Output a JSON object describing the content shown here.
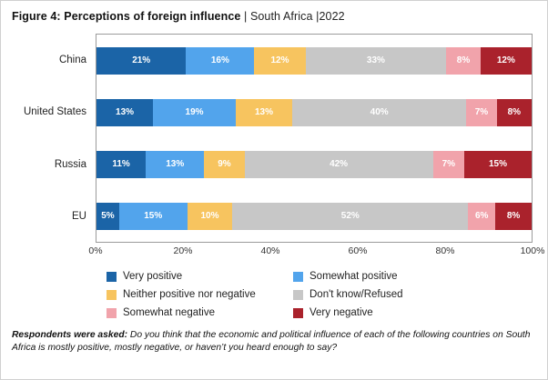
{
  "title": {
    "bold": "Figure 4: Perceptions of foreign influence",
    "rest": " | South Africa |2022"
  },
  "chart_data": {
    "type": "bar",
    "orientation": "horizontal",
    "stacked": true,
    "categories": [
      "China",
      "United States",
      "Russia",
      "EU"
    ],
    "series": [
      {
        "name": "Very positive",
        "color": "#1b64a7",
        "values": [
          21,
          13,
          11,
          5
        ]
      },
      {
        "name": "Somewhat positive",
        "color": "#52a4ec",
        "values": [
          16,
          19,
          13,
          15
        ]
      },
      {
        "name": "Neither positive nor negative",
        "color": "#f7c45f",
        "values": [
          12,
          13,
          9,
          10
        ]
      },
      {
        "name": "Don't know/Refused",
        "color": "#c7c7c7",
        "values": [
          33,
          40,
          42,
          52
        ]
      },
      {
        "name": "Somewhat negative",
        "color": "#f1a3ab",
        "values": [
          8,
          7,
          7,
          6
        ]
      },
      {
        "name": "Very negative",
        "color": "#aa222c",
        "values": [
          12,
          8,
          15,
          8
        ]
      }
    ],
    "value_suffix": "%",
    "x_ticks": [
      "0%",
      "20%",
      "40%",
      "60%",
      "80%",
      "100%"
    ],
    "xlim": [
      0,
      100
    ],
    "grid": false,
    "legend_position": "bottom"
  },
  "footnote": {
    "lead": "Respondents were asked:",
    "text": " Do you think that the economic and political influence of each of the following countries on South Africa is mostly positive, mostly negative, or haven’t you heard enough to say?"
  }
}
